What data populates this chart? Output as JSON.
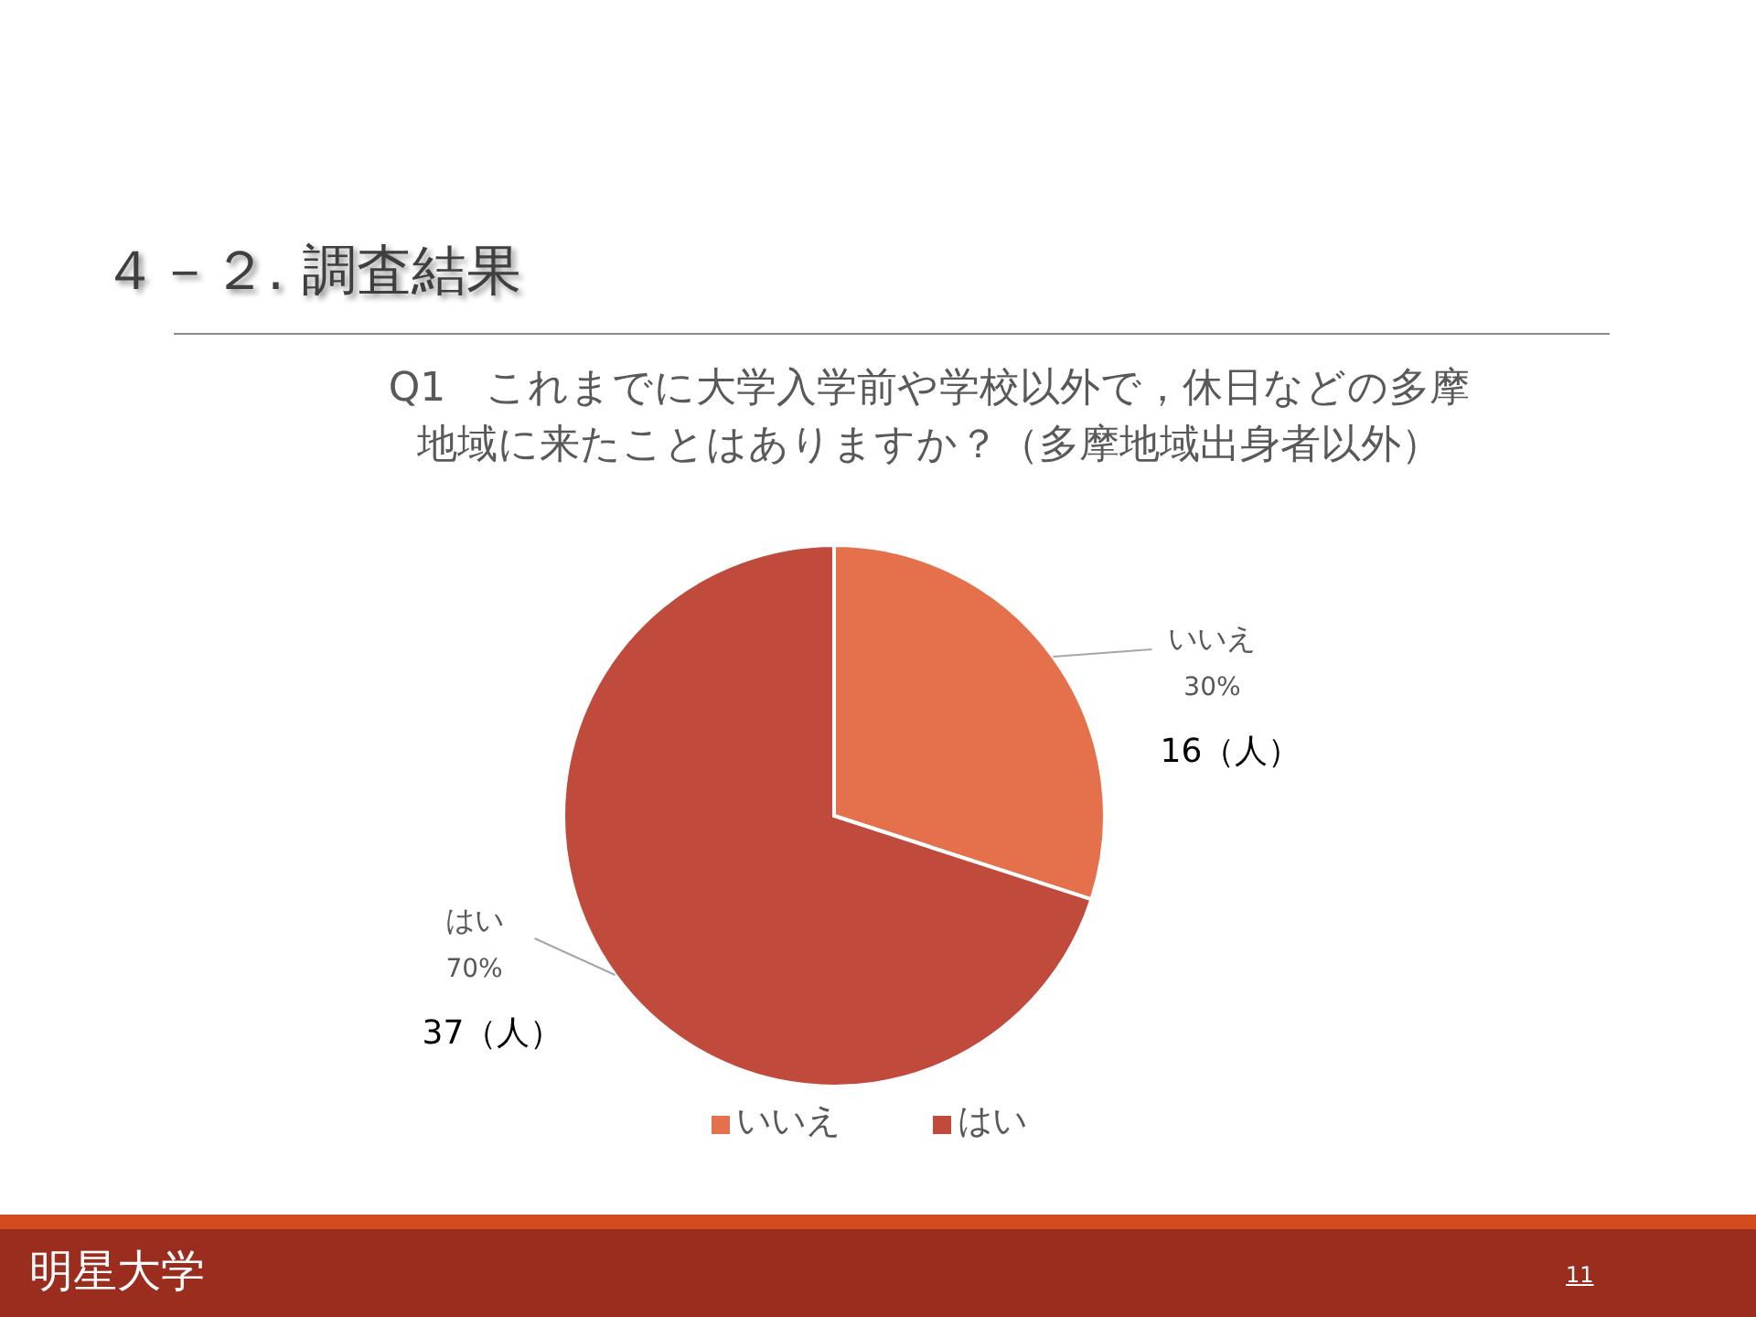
{
  "chart_data": {
    "type": "pie",
    "title": "４－２. 調査結果",
    "subtitle": "Q1　これまでに大学入学前や学校以外で，休日などの多摩地域に来たことはありますか？（多摩地域出身者以外）",
    "categories": [
      "いいえ",
      "はい"
    ],
    "values": [
      30,
      70
    ],
    "colors": [
      "#e4704c",
      "#c04a3c"
    ],
    "value_labels": [
      "30%",
      "70%"
    ],
    "annotations": [
      "16（人）",
      "37（人）",
      "明星大学",
      "11"
    ],
    "legend": "bottom"
  }
}
